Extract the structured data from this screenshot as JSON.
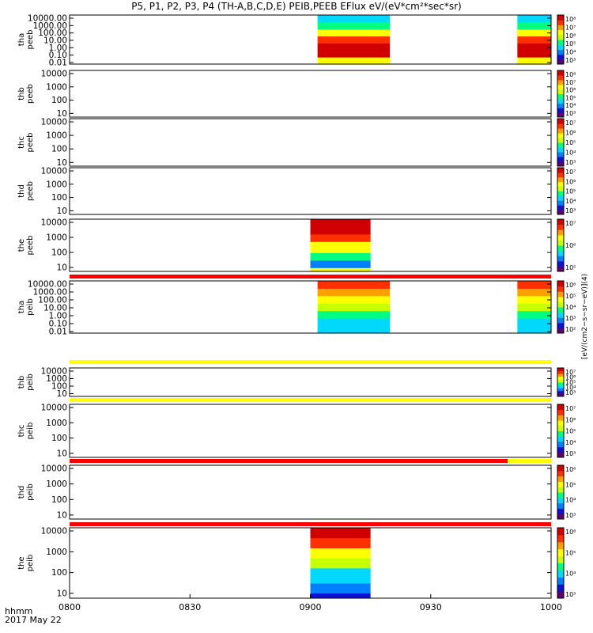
{
  "title": "P5, P1, P2, P3, P4 (TH-A,B,C,D,E) PEIB,PEEB EFlux eV/(eV*cm²*sec*sr)",
  "time_axis": {
    "format_label": "hhmm",
    "date_label": "2017 May 22",
    "range_hours": [
      8.0,
      10.0
    ],
    "ticks": [
      {
        "t": 8.0,
        "label": "0800"
      },
      {
        "t": 8.5,
        "label": "0830"
      },
      {
        "t": 9.0,
        "label": "0900"
      },
      {
        "t": 9.5,
        "label": "0930"
      },
      {
        "t": 10.0,
        "label": "1000"
      }
    ]
  },
  "colorbar_label": "[eV/(cm2−s−sr−eV)](4)",
  "colorscale": [
    "#5a0070",
    "#1010d0",
    "#0080ff",
    "#00d8ff",
    "#00ff80",
    "#c8ff00",
    "#ffff00",
    "#ffa000",
    "#ff3000",
    "#d00000"
  ],
  "chart_data": [
    {
      "type": "heatmap",
      "name_lines": [
        "tha",
        "peeb"
      ],
      "ylabel": "",
      "log_scale": true,
      "ylim": [
        0.01,
        30000
      ],
      "yticks": [
        "10000.00",
        "1000.00",
        "100.00",
        "10.00",
        "1.00",
        "0.10",
        "0.01"
      ],
      "cbar_ticks": [
        "10⁸",
        "10⁷",
        "10⁶",
        "10⁵",
        "10⁴",
        "10³"
      ],
      "blocks": [
        {
          "t0": 9.03,
          "t1": 9.33,
          "pattern": "peeb_a"
        },
        {
          "t0": 9.86,
          "t1": 10.0,
          "pattern": "peeb_a"
        }
      ],
      "mode_bar": null
    },
    {
      "type": "heatmap",
      "name_lines": [
        "thb",
        "peeb"
      ],
      "ylabel": "",
      "log_scale": true,
      "ylim": [
        5,
        30000
      ],
      "yticks": [
        "10000",
        "1000",
        "100",
        "10"
      ],
      "cbar_ticks": [
        "10⁸",
        "10⁷",
        "10⁶",
        "10⁵",
        "10⁴",
        "10³"
      ],
      "blocks": [],
      "mode_bar": null
    },
    {
      "type": "heatmap",
      "name_lines": [
        "thc",
        "peeb"
      ],
      "ylabel": "",
      "log_scale": true,
      "ylim": [
        5,
        30000
      ],
      "yticks": [
        "10000",
        "1000",
        "100",
        "10"
      ],
      "cbar_ticks": [
        "10⁷",
        "10⁶",
        "10⁵",
        "10⁴",
        "10³"
      ],
      "blocks": [],
      "mode_bar": null
    },
    {
      "type": "heatmap",
      "name_lines": [
        "thd",
        "peeb"
      ],
      "ylabel": "",
      "log_scale": true,
      "ylim": [
        5,
        30000
      ],
      "yticks": [
        "10000",
        "1000",
        "100",
        "10"
      ],
      "cbar_ticks": [
        "10⁷",
        "10⁶",
        "10⁵",
        "10⁴",
        "10³"
      ],
      "blocks": [],
      "mode_bar": null
    },
    {
      "type": "heatmap",
      "name_lines": [
        "the",
        "peeb"
      ],
      "ylabel": "",
      "log_scale": true,
      "ylim": [
        5,
        30000
      ],
      "yticks": [
        "10000",
        "1000",
        "100",
        "10"
      ],
      "cbar_ticks": [
        "10⁷",
        "10⁶",
        "10⁵"
      ],
      "blocks": [
        {
          "t0": 9.0,
          "t1": 9.25,
          "pattern": "peeb_e"
        }
      ],
      "mode_bar": {
        "color": "#ff0000",
        "switch_t": null,
        "switch_color": null
      }
    },
    {
      "type": "heatmap",
      "name_lines": [
        "tha",
        "peib"
      ],
      "ylabel": "",
      "log_scale": true,
      "ylim": [
        0.01,
        30000
      ],
      "yticks": [
        "10000.00",
        "1000.00",
        "100.00",
        "10.00",
        "1.00",
        "0.10",
        "0.01"
      ],
      "cbar_ticks": [
        "10⁶",
        "10⁵",
        "10⁴",
        "10³",
        "10²"
      ],
      "blocks": [
        {
          "t0": 9.03,
          "t1": 9.33,
          "pattern": "peib_a"
        },
        {
          "t0": 9.86,
          "t1": 10.0,
          "pattern": "peib_a"
        }
      ],
      "mode_bar": {
        "color": "#ffff00",
        "switch_t": null,
        "switch_color": null
      }
    },
    {
      "type": "heatmap",
      "name_lines": [
        "thb",
        "peib"
      ],
      "ylabel": "",
      "log_scale": true,
      "ylim": [
        5,
        30000
      ],
      "yticks": [
        "10000",
        "1000",
        "100",
        "10"
      ],
      "cbar_ticks": [
        "10⁷",
        "10⁶",
        "10⁵",
        "10⁴",
        "10³"
      ],
      "blocks": [],
      "mode_bar": {
        "color": "#ffff00",
        "switch_t": null,
        "switch_color": null
      }
    },
    {
      "type": "heatmap",
      "name_lines": [
        "thc",
        "peib"
      ],
      "ylabel": "",
      "log_scale": true,
      "ylim": [
        5,
        30000
      ],
      "yticks": [
        "10000",
        "1000",
        "100",
        "10"
      ],
      "cbar_ticks": [
        "10⁷",
        "10⁶",
        "10⁵",
        "10⁴",
        "10³"
      ],
      "blocks": [],
      "mode_bar": {
        "color": "#ff0000",
        "switch_t": 9.82,
        "switch_color": "#ffff00"
      }
    },
    {
      "type": "heatmap",
      "name_lines": [
        "thd",
        "peib"
      ],
      "ylabel": "",
      "log_scale": true,
      "ylim": [
        5,
        30000
      ],
      "yticks": [
        "10000",
        "1000",
        "100",
        "10"
      ],
      "cbar_ticks": [
        "10⁶",
        "10⁵",
        "10⁴",
        "10³"
      ],
      "blocks": [],
      "mode_bar": {
        "color": "#ff0000",
        "switch_t": null,
        "switch_color": null
      }
    },
    {
      "type": "heatmap",
      "name_lines": [
        "the",
        "peib"
      ],
      "ylabel": "",
      "log_scale": true,
      "ylim": [
        5,
        30000
      ],
      "yticks": [
        "10000",
        "1000",
        "100",
        "10"
      ],
      "cbar_ticks": [
        "10⁶",
        "10⁵",
        "10⁴",
        "10³"
      ],
      "blocks": [
        {
          "t0": 9.0,
          "t1": 9.25,
          "pattern": "peib_e"
        }
      ],
      "mode_bar": null
    }
  ]
}
